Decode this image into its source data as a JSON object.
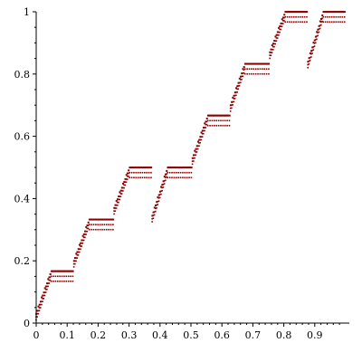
{
  "chart_data": {
    "type": "scatter",
    "title": "",
    "xlabel": "",
    "ylabel": "",
    "xlim": [
      0,
      1
    ],
    "ylim": [
      0,
      1
    ],
    "grid": false,
    "colors": {
      "points": "#8b0000",
      "axes": "#000000"
    },
    "x_ticks": [
      {
        "value": 0,
        "label": "0"
      },
      {
        "value": 0.1,
        "label": "0.1"
      },
      {
        "value": 0.2,
        "label": "0.2"
      },
      {
        "value": 0.3,
        "label": "0.3"
      },
      {
        "value": 0.4,
        "label": "0.4"
      },
      {
        "value": 0.5,
        "label": "0.5"
      },
      {
        "value": 0.6,
        "label": "0.6"
      },
      {
        "value": 0.7,
        "label": "0.7"
      },
      {
        "value": 0.8,
        "label": "0.8"
      },
      {
        "value": 0.9,
        "label": "0.9"
      }
    ],
    "y_ticks": [
      {
        "value": 0,
        "label": "0"
      },
      {
        "value": 0.2,
        "label": "0.2"
      },
      {
        "value": 0.4,
        "label": "0.4"
      },
      {
        "value": 0.6,
        "label": "0.6"
      },
      {
        "value": 0.8,
        "label": "0.8"
      },
      {
        "value": 1,
        "label": "1"
      }
    ],
    "segments": [
      {
        "x_start": 0.0,
        "x_end": 0.049,
        "y_start": 0.03,
        "y_end": 0.167
      },
      {
        "x_start": 0.049,
        "x_end": 0.122,
        "y_start": 0.167,
        "y_end": 0.167
      },
      {
        "x_start": 0.122,
        "x_end": 0.172,
        "y_start": 0.2,
        "y_end": 0.333
      },
      {
        "x_start": 0.172,
        "x_end": 0.252,
        "y_start": 0.333,
        "y_end": 0.333
      },
      {
        "x_start": 0.252,
        "x_end": 0.302,
        "y_start": 0.37,
        "y_end": 0.5
      },
      {
        "x_start": 0.302,
        "x_end": 0.375,
        "y_start": 0.5,
        "y_end": 0.5
      },
      {
        "x_start": 0.375,
        "x_end": 0.425,
        "y_start": 0.345,
        "y_end": 0.5
      },
      {
        "x_start": 0.425,
        "x_end": 0.505,
        "y_start": 0.5,
        "y_end": 0.5
      },
      {
        "x_start": 0.505,
        "x_end": 0.555,
        "y_start": 0.53,
        "y_end": 0.667
      },
      {
        "x_start": 0.555,
        "x_end": 0.628,
        "y_start": 0.667,
        "y_end": 0.667
      },
      {
        "x_start": 0.628,
        "x_end": 0.675,
        "y_start": 0.7,
        "y_end": 0.833
      },
      {
        "x_start": 0.675,
        "x_end": 0.755,
        "y_start": 0.833,
        "y_end": 0.833
      },
      {
        "x_start": 0.755,
        "x_end": 0.805,
        "y_start": 0.87,
        "y_end": 1.0
      },
      {
        "x_start": 0.805,
        "x_end": 0.878,
        "y_start": 1.0,
        "y_end": 1.0
      },
      {
        "x_start": 0.878,
        "x_end": 0.928,
        "y_start": 0.84,
        "y_end": 1.0
      },
      {
        "x_start": 0.928,
        "x_end": 1.0,
        "y_start": 1.0,
        "y_end": 1.0
      }
    ],
    "series": [
      {
        "values_offset": 0
      },
      {
        "values_offset": -0.017
      },
      {
        "values_offset": -0.033
      }
    ]
  }
}
